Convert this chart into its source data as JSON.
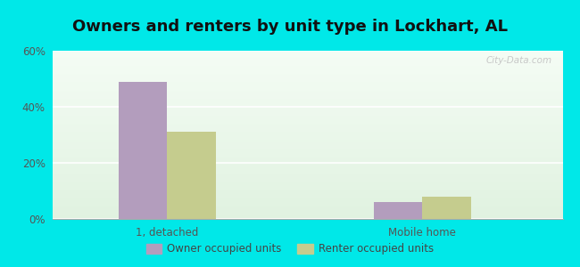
{
  "title": "Owners and renters by unit type in Lockhart, AL",
  "categories": [
    "1, detached",
    "Mobile home"
  ],
  "owner_values": [
    49,
    6
  ],
  "renter_values": [
    31,
    8
  ],
  "owner_color": "#b39dbd",
  "renter_color": "#c5cc8e",
  "ylim": [
    0,
    60
  ],
  "yticks": [
    0,
    20,
    40,
    60
  ],
  "ytick_labels": [
    "0%",
    "20%",
    "40%",
    "60%"
  ],
  "background_color": "#00e8e8",
  "title_fontsize": 13,
  "legend_label_owner": "Owner occupied units",
  "legend_label_renter": "Renter occupied units",
  "bar_width": 0.38,
  "watermark": "City-Data.com"
}
